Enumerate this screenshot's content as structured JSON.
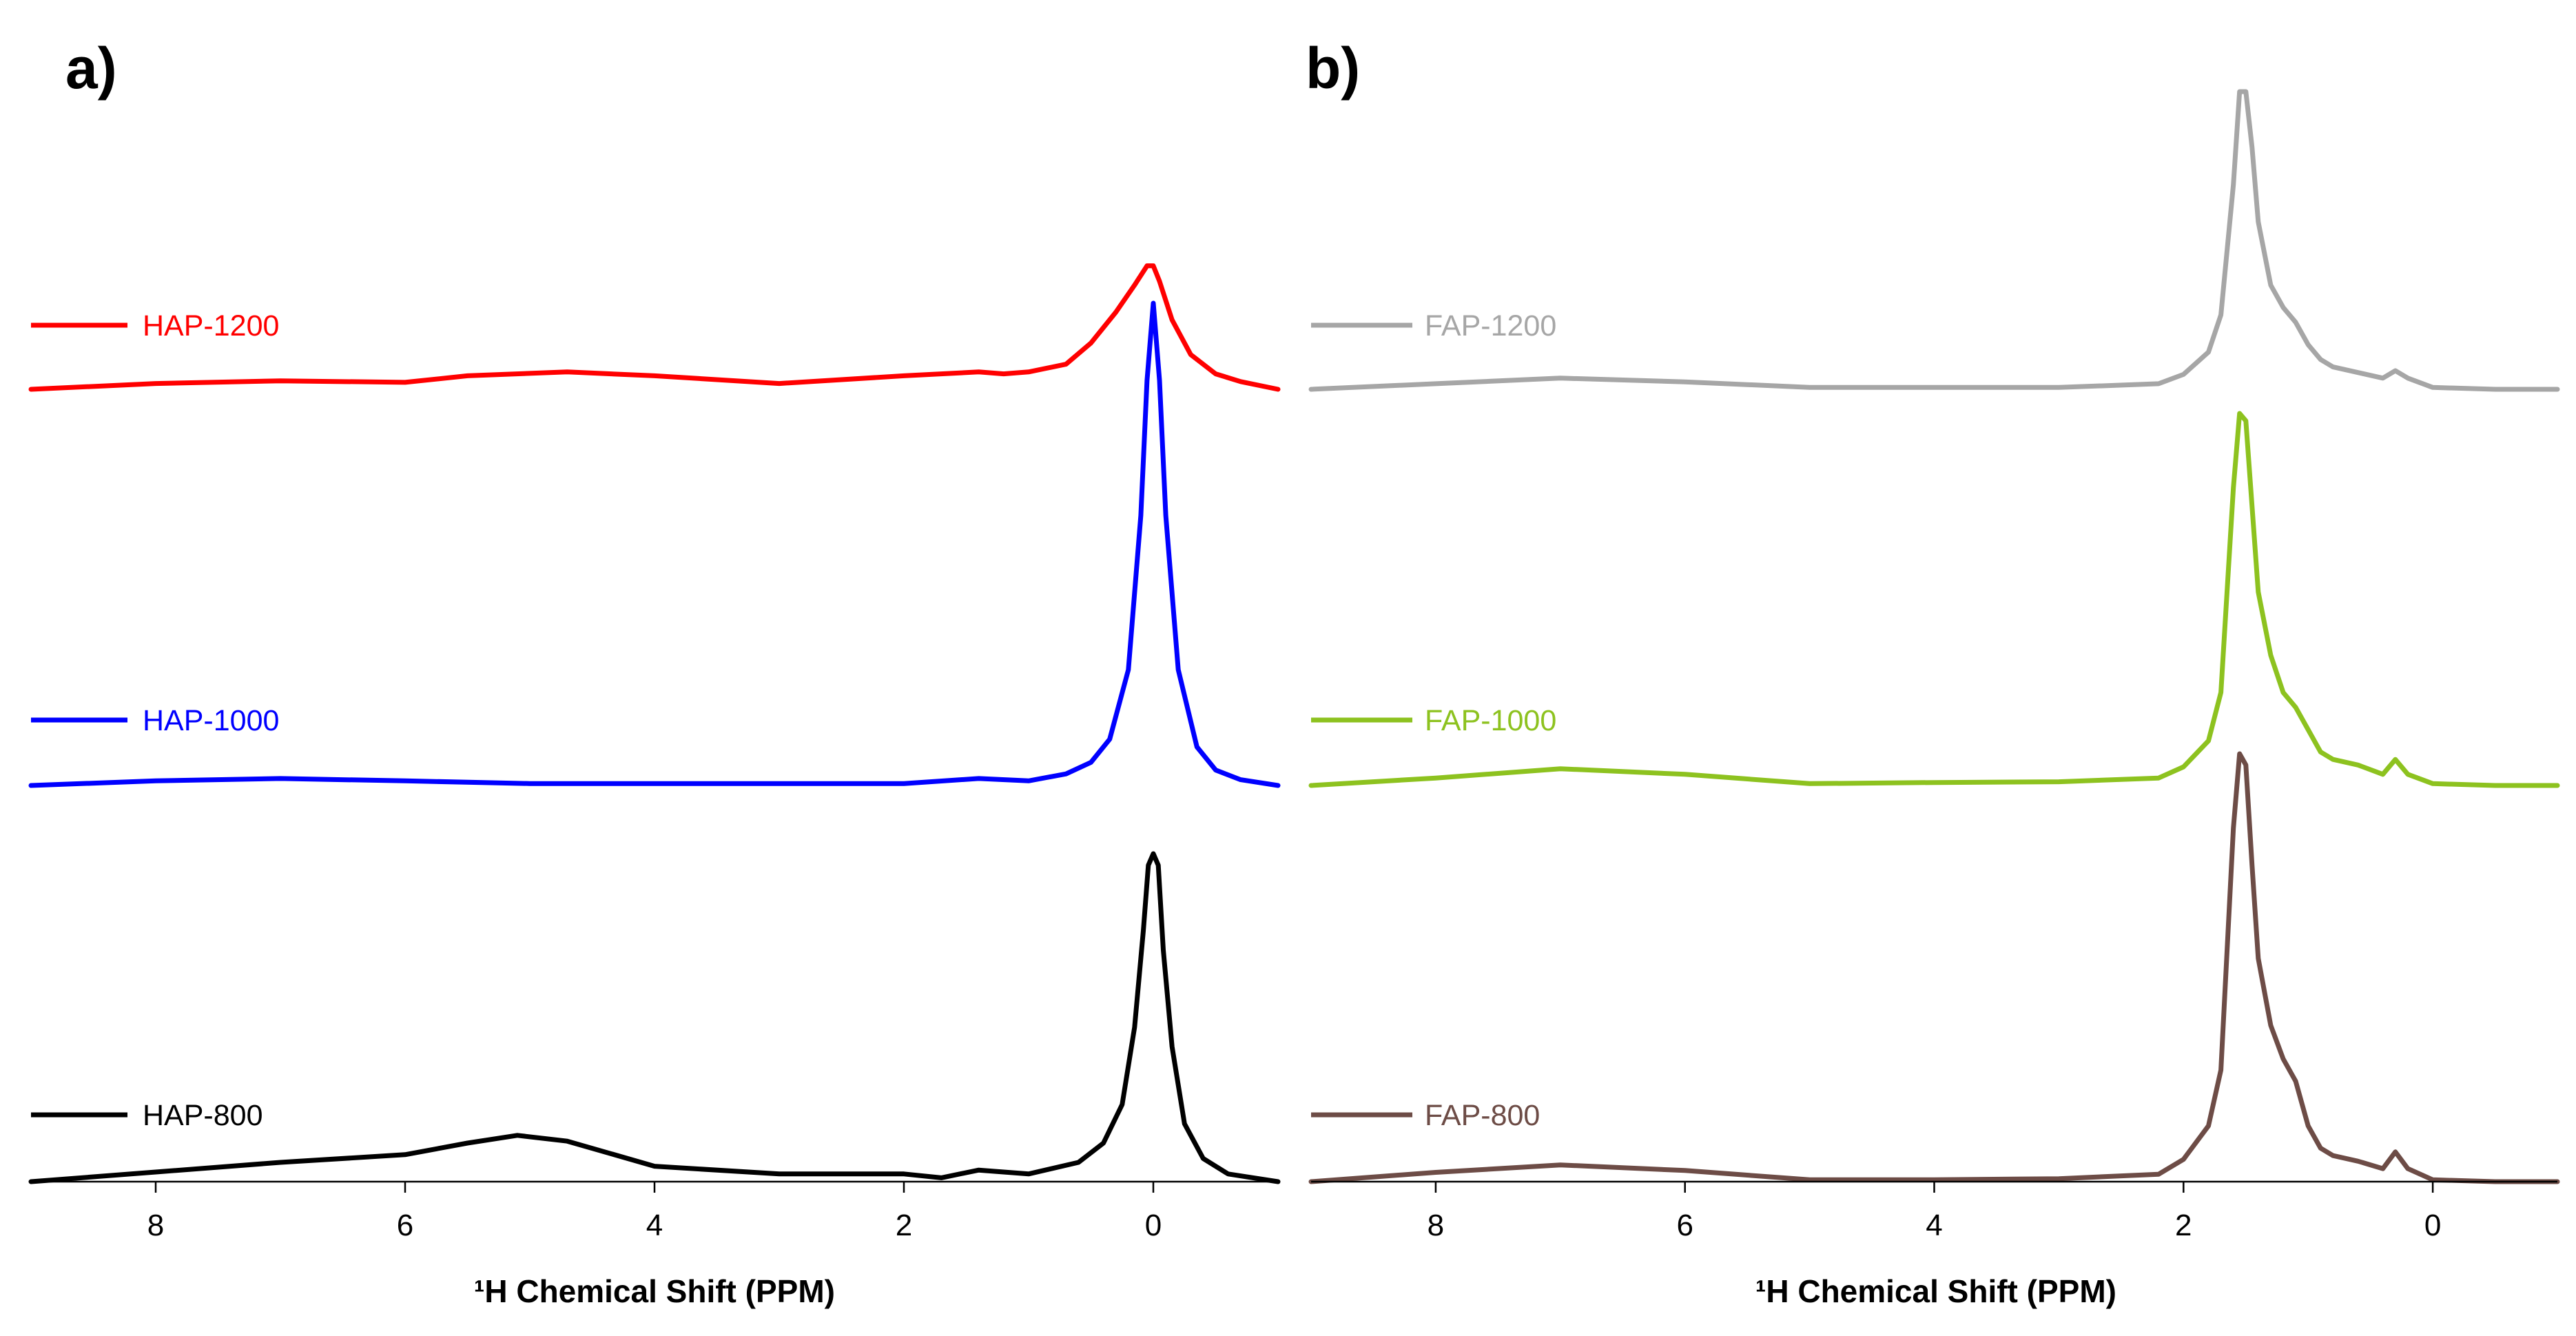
{
  "chart_data": [
    {
      "type": "line",
      "panel_label": "a)",
      "xlabel": "¹H Chemical Shift (PPM)",
      "xlim": [
        9,
        -1
      ],
      "x_ticks": [
        8,
        6,
        4,
        2,
        0
      ],
      "x_tick_labels": [
        "8",
        "6",
        "4",
        "2",
        "0"
      ],
      "stacked": true,
      "series": [
        {
          "name": "HAP-1200",
          "color": "#ff0000",
          "x": [
            9,
            8,
            7,
            6,
            5.5,
            4.7,
            4,
            3,
            2,
            1.4,
            1.2,
            1,
            0.7,
            0.5,
            0.3,
            0.15,
            0.05,
            0,
            -0.05,
            -0.15,
            -0.3,
            -0.5,
            -0.7,
            -1
          ],
          "y": [
            0,
            0.015,
            0.022,
            0.018,
            0.035,
            0.045,
            0.035,
            0.015,
            0.035,
            0.045,
            0.04,
            0.045,
            0.065,
            0.12,
            0.2,
            0.27,
            0.32,
            0.32,
            0.28,
            0.18,
            0.09,
            0.04,
            0.02,
            0
          ]
        },
        {
          "name": "HAP-1000",
          "color": "#0000ff",
          "x": [
            9,
            8,
            7,
            6,
            5,
            4,
            3,
            2,
            1.4,
            1,
            0.7,
            0.5,
            0.35,
            0.2,
            0.1,
            0.05,
            0,
            -0.05,
            -0.1,
            -0.2,
            -0.35,
            -0.5,
            -0.7,
            -1
          ],
          "y": [
            0,
            0.012,
            0.018,
            0.012,
            0.005,
            0.005,
            0.005,
            0.005,
            0.018,
            0.012,
            0.03,
            0.06,
            0.12,
            0.3,
            0.7,
            1.05,
            1.25,
            1.05,
            0.7,
            0.3,
            0.1,
            0.04,
            0.015,
            0
          ]
        },
        {
          "name": "HAP-800",
          "color": "#000000",
          "x": [
            9,
            8,
            7,
            6,
            5.5,
            5.1,
            4.7,
            4,
            3,
            2,
            1.7,
            1.4,
            1,
            0.6,
            0.4,
            0.25,
            0.15,
            0.08,
            0.04,
            0,
            -0.04,
            -0.08,
            -0.15,
            -0.25,
            -0.4,
            -0.6,
            -1
          ],
          "y": [
            0,
            0.025,
            0.05,
            0.07,
            0.1,
            0.12,
            0.105,
            0.04,
            0.02,
            0.02,
            0.01,
            0.03,
            0.02,
            0.05,
            0.1,
            0.2,
            0.4,
            0.65,
            0.82,
            0.85,
            0.82,
            0.6,
            0.35,
            0.15,
            0.06,
            0.02,
            0
          ]
        }
      ]
    },
    {
      "type": "line",
      "panel_label": "b)",
      "xlabel": "¹H Chemical Shift (PPM)",
      "xlim": [
        9,
        -1
      ],
      "x_ticks": [
        8,
        6,
        4,
        2,
        0
      ],
      "x_tick_labels": [
        "8",
        "6",
        "4",
        "2",
        "0"
      ],
      "stacked": true,
      "series": [
        {
          "name": "FAP-1200",
          "color": "#a6a6a6",
          "x": [
            9,
            8,
            7,
            6,
            5,
            4,
            3,
            2.2,
            2,
            1.8,
            1.7,
            1.6,
            1.55,
            1.5,
            1.45,
            1.4,
            1.3,
            1.2,
            1.1,
            1,
            0.9,
            0.8,
            0.6,
            0.4,
            0.3,
            0.2,
            0,
            -0.5,
            -1
          ],
          "y": [
            0,
            0.015,
            0.03,
            0.02,
            0.005,
            0.005,
            0.005,
            0.015,
            0.04,
            0.1,
            0.2,
            0.55,
            0.8,
            0.8,
            0.65,
            0.45,
            0.28,
            0.22,
            0.18,
            0.12,
            0.08,
            0.06,
            0.045,
            0.03,
            0.05,
            0.03,
            0.005,
            0,
            0
          ]
        },
        {
          "name": "FAP-1000",
          "color": "#8dc21f",
          "x": [
            9,
            8,
            7,
            6,
            5,
            4,
            3,
            2.2,
            2,
            1.8,
            1.7,
            1.6,
            1.55,
            1.5,
            1.45,
            1.4,
            1.3,
            1.2,
            1.1,
            1,
            0.9,
            0.8,
            0.6,
            0.4,
            0.3,
            0.2,
            0,
            -0.5,
            -1
          ],
          "y": [
            0,
            0.02,
            0.045,
            0.03,
            0.005,
            0.008,
            0.01,
            0.02,
            0.05,
            0.12,
            0.25,
            0.8,
            1.0,
            0.98,
            0.75,
            0.52,
            0.35,
            0.25,
            0.21,
            0.15,
            0.09,
            0.07,
            0.055,
            0.03,
            0.07,
            0.03,
            0.005,
            0,
            0
          ]
        },
        {
          "name": "FAP-800",
          "color": "#6d4c46",
          "x": [
            9,
            8,
            7,
            6,
            5,
            4,
            3,
            2.2,
            2,
            1.8,
            1.7,
            1.6,
            1.55,
            1.5,
            1.45,
            1.4,
            1.3,
            1.2,
            1.1,
            1,
            0.9,
            0.8,
            0.6,
            0.4,
            0.3,
            0.2,
            0,
            -0.5,
            -1
          ],
          "y": [
            0,
            0.025,
            0.045,
            0.03,
            0.005,
            0.005,
            0.008,
            0.02,
            0.06,
            0.15,
            0.3,
            0.95,
            1.15,
            1.12,
            0.85,
            0.6,
            0.42,
            0.33,
            0.27,
            0.15,
            0.09,
            0.07,
            0.055,
            0.035,
            0.08,
            0.035,
            0.005,
            0,
            0
          ]
        }
      ]
    }
  ]
}
